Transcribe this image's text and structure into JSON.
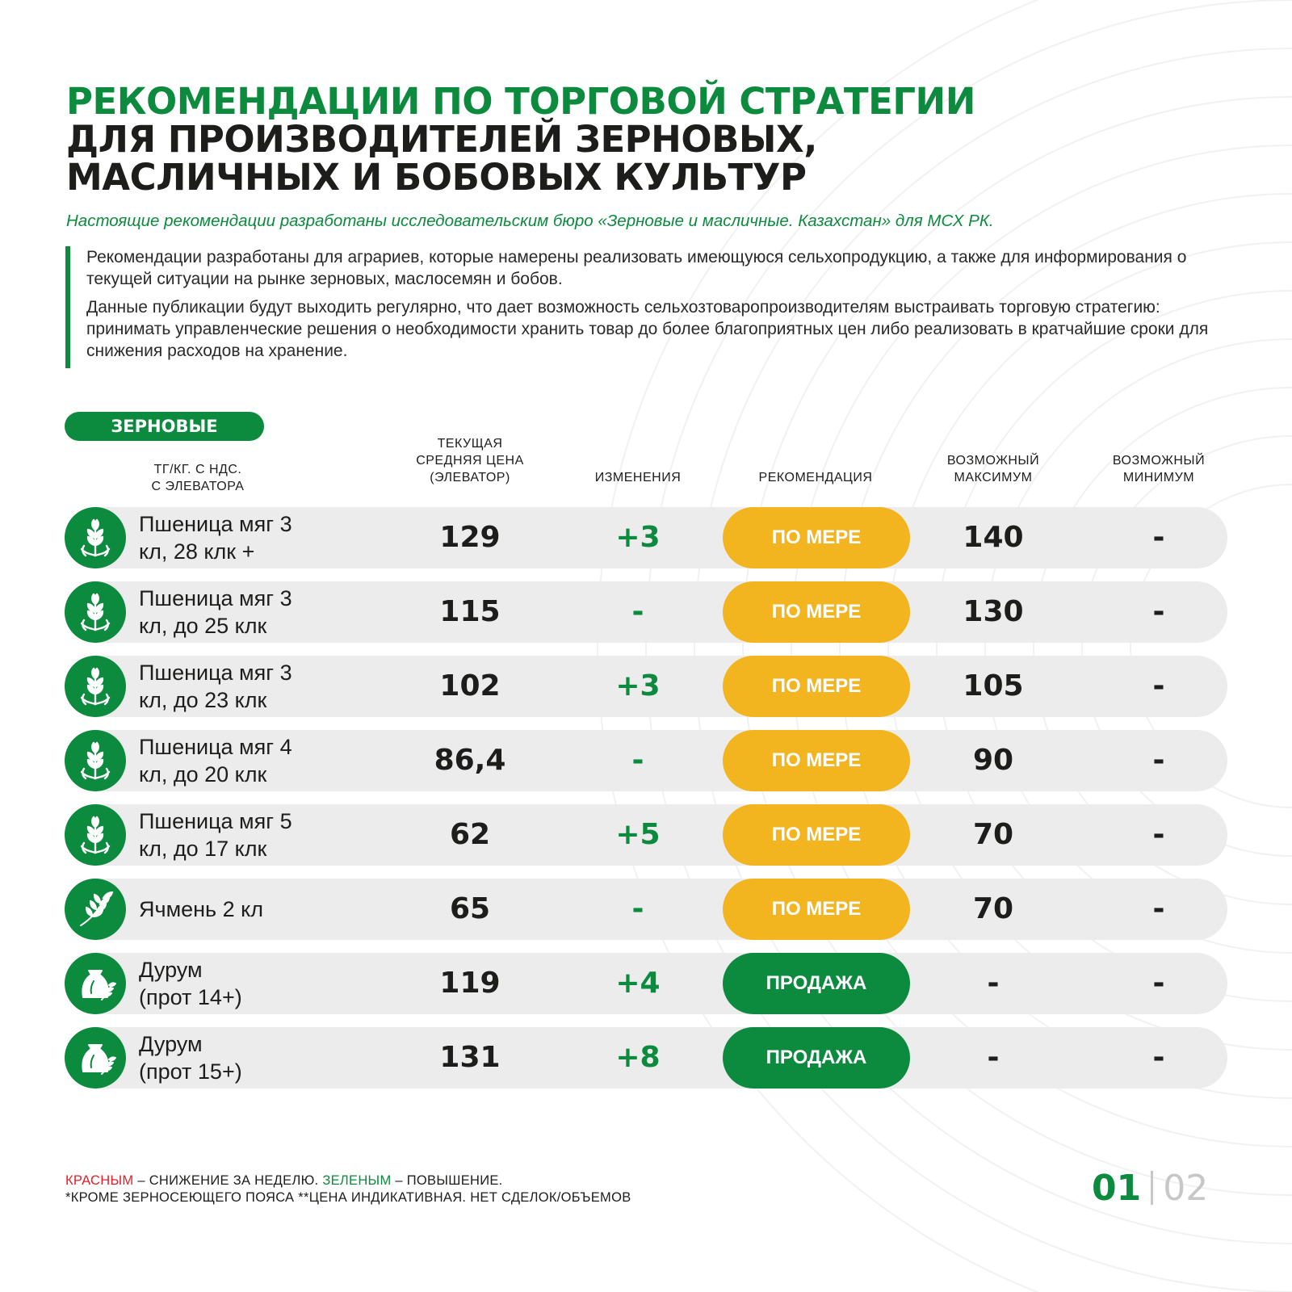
{
  "header": {
    "title_line1": "РЕКОМЕНДАЦИИ ПО ТОРГОВОЙ СТРАТЕГИИ",
    "title_line2": "ДЛЯ ПРОИЗВОДИТЕЛЕЙ ЗЕРНОВЫХ,",
    "title_line3": "МАСЛИЧНЫХ И БОБОВЫХ КУЛЬТУР",
    "subtitle": "Настоящие рекомендации разработаны исследовательским бюро «Зерновые и масличные. Казахстан» для МСХ РК."
  },
  "intro": {
    "paragraph1": "Рекомендации разработаны для аграриев, которые намерены реализовать имеющуюся сельхопродукцию, а также для информирования о текущей ситуации на рынке зерновых, маслосемян и бобов.",
    "paragraph2": "Данные публикации будут выходить регулярно, что дает возможность сельхозтоваропроизводителям выстраивать торговую стратегию: принимать управленческие решения о необходимости хранить товар до более благоприятных цен либо реализовать в кратчайшие сроки для снижения расходов на хранение."
  },
  "category": "ЗЕРНОВЫЕ",
  "table": {
    "headers": {
      "unit": "ТГ/КГ. С НДС.\nС ЭЛЕВАТОРА",
      "price": "ТЕКУЩАЯ\nСРЕДНЯЯ ЦЕНА\n(ЭЛЕВАТОР)",
      "change": "ИЗМЕНЕНИЯ",
      "recommendation": "РЕКОМЕНДАЦИЯ",
      "max": "ВОЗМОЖНЫЙ\nМАКСИМУМ",
      "min": "ВОЗМОЖНЫЙ\nМИНИМУМ"
    },
    "rows": [
      {
        "name": "Пшеница мяг 3\nкл, 28 клк +",
        "icon": "wheat-icon",
        "price": "129",
        "change": "+3",
        "recommendation": "ПО МЕРЕ",
        "rec_color": "#f2b51f",
        "max": "140",
        "min": "-"
      },
      {
        "name": "Пшеница мяг 3\nкл, до 25 клк",
        "icon": "wheat-icon",
        "price": "115",
        "change": "-",
        "recommendation": "ПО МЕРЕ",
        "rec_color": "#f2b51f",
        "max": "130",
        "min": "-"
      },
      {
        "name": "Пшеница мяг 3\nкл, до 23 клк",
        "icon": "wheat-icon",
        "price": "102",
        "change": "+3",
        "recommendation": "ПО МЕРЕ",
        "rec_color": "#f2b51f",
        "max": "105",
        "min": "-"
      },
      {
        "name": "Пшеница мяг 4\nкл, до 20 клк",
        "icon": "wheat-icon",
        "price": "86,4",
        "change": "-",
        "recommendation": "ПО МЕРЕ",
        "rec_color": "#f2b51f",
        "max": "90",
        "min": "-"
      },
      {
        "name": "Пшеница мяг 5\nкл, до 17 клк",
        "icon": "wheat-icon",
        "price": "62",
        "change": "+5",
        "recommendation": "ПО МЕРЕ",
        "rec_color": "#f2b51f",
        "max": "70",
        "min": "-"
      },
      {
        "name": "Ячмень 2 кл",
        "icon": "barley-icon",
        "price": "65",
        "change": "-",
        "recommendation": "ПО МЕРЕ",
        "rec_color": "#f2b51f",
        "max": "70",
        "min": "-"
      },
      {
        "name": "Дурум\n(прот 14+)",
        "icon": "grain-sack-icon",
        "price": "119",
        "change": "+4",
        "recommendation": "ПРОДАЖА",
        "rec_color": "#0c8a3e",
        "max": "-",
        "min": "-"
      },
      {
        "name": "Дурум\n(прот 15+)",
        "icon": "grain-sack-icon",
        "price": "131",
        "change": "+8",
        "recommendation": "ПРОДАЖА",
        "rec_color": "#0c8a3e",
        "max": "-",
        "min": "-"
      }
    ]
  },
  "legend": {
    "red_word": "КРАСНЫМ",
    "red_text": " – СНИЖЕНИЕ ЗА НЕДЕЛЮ. ",
    "green_word": "ЗЕЛЕНЫМ",
    "green_text": " – ПОВЫШЕНИЕ.",
    "footnote": "*КРОМЕ ЗЕРНОСЕЮЩЕГО ПОЯСА **ЦЕНА ИНДИКАТИВНАЯ. НЕТ СДЕЛОК/ОБЪЕМОВ"
  },
  "pagination": {
    "current": "01",
    "total": "02"
  },
  "colors": {
    "brand_green": "#0c8a3e",
    "accent_yellow": "#f2b51f",
    "negative_red": "#e21f26",
    "row_bg": "#ececec"
  }
}
